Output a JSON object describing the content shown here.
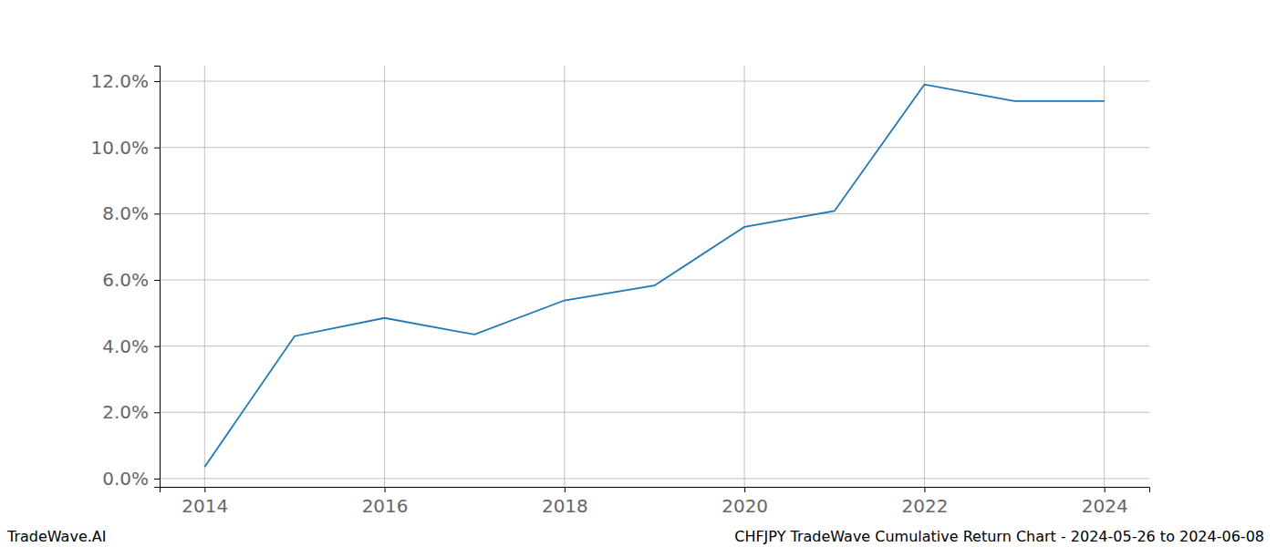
{
  "chart_data": {
    "type": "line",
    "title": "CHFJPY TradeWave Cumulative Return Chart - 2024-05-26 to 2024-06-08",
    "annotations": [
      "TradeWave.AI"
    ],
    "x": [
      2014,
      2015,
      2016,
      2017,
      2018,
      2019,
      2020,
      2021,
      2022,
      2023,
      2024
    ],
    "series": [
      {
        "name": "CHFJPY",
        "color": "#1f77b4",
        "values": [
          0.35,
          4.3,
          4.85,
          4.35,
          5.38,
          5.83,
          7.6,
          8.08,
          11.9,
          11.4,
          11.4
        ]
      }
    ],
    "xlim": [
      2013.5,
      2024.5
    ],
    "xticks": [
      2014,
      2016,
      2018,
      2020,
      2022,
      2024
    ],
    "ylim": [
      -0.25,
      12.47
    ],
    "yticks": [
      {
        "value": 0,
        "label": "0.0%"
      },
      {
        "value": 2,
        "label": "2.0%"
      },
      {
        "value": 4,
        "label": "4.0%"
      },
      {
        "value": 6,
        "label": "6.0%"
      },
      {
        "value": 8,
        "label": "8.0%"
      },
      {
        "value": 10,
        "label": "10.0%"
      },
      {
        "value": 12,
        "label": "12.0%"
      }
    ],
    "grid": true
  }
}
